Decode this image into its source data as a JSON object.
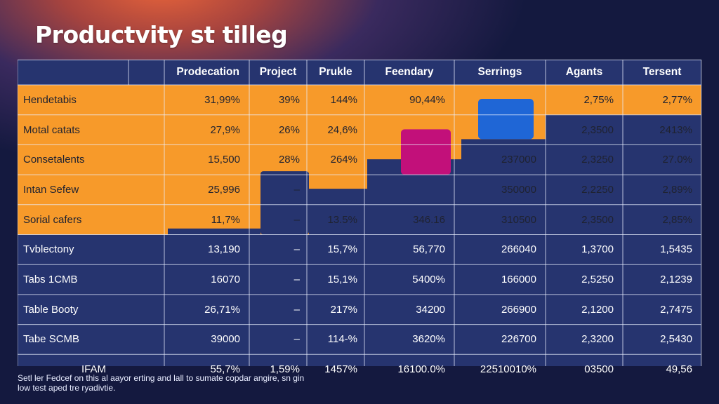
{
  "title": "Productvity st tilleg",
  "footnote": "Setl ler Fedcef on this al aayor erting and lall to sumate copdar angire, sn gin low test aped tre ryadivtie.",
  "colors": {
    "orange": "#f79a2a",
    "navy": "#26346f",
    "magenta": "#c2107a",
    "blue": "#1f66d6",
    "text_dark": "#1f2230"
  },
  "chart_data": {
    "type": "table",
    "title": "Productvity st tilleg",
    "columns": [
      "",
      "",
      "Prodecation",
      "Project",
      "Prukle",
      "Feendary",
      "Serrings",
      "Agants",
      "Tersent"
    ],
    "rows": [
      {
        "label": "Hendetabis",
        "cells": [
          "31,99%",
          "39%",
          "144%",
          "90,44%",
          "",
          "2,75%",
          "2,77%"
        ]
      },
      {
        "label": "Motal catats",
        "cells": [
          "27,9%",
          "26%",
          "24,6%",
          "",
          "",
          "2,3500",
          "2413%"
        ]
      },
      {
        "label": "Consetalents",
        "cells": [
          "15,500",
          "28%",
          "264%",
          "",
          "237000",
          "2,3250",
          "27.0%"
        ]
      },
      {
        "label": "Intan Sefew",
        "cells": [
          "25,996",
          "–",
          "",
          "",
          "350000",
          "2,2250",
          "2,89%"
        ]
      },
      {
        "label": "Sorial cafers",
        "cells": [
          "11,7%",
          "–",
          "13.5%",
          "346.16",
          "310500",
          "2,3500",
          "2,85%"
        ]
      },
      {
        "label": "Tvblectony",
        "cells": [
          "13,190",
          "–",
          "15,7%",
          "56,770",
          "266040",
          "1,3700",
          "1,5435"
        ]
      },
      {
        "label": "Tabs 1CMB",
        "cells": [
          "16070",
          "–",
          "15,1%",
          "5400%",
          "166000",
          "2,5250",
          "2,1239"
        ]
      },
      {
        "label": "Table Booty",
        "cells": [
          "26,71%",
          "–",
          "217%",
          "34200",
          "266900",
          "2,1200",
          "2,7475"
        ]
      },
      {
        "label": "Tabe SCMB",
        "cells": [
          "39000",
          "–",
          "114-%",
          "3620%",
          "226700",
          "2,3200",
          "2,5430"
        ]
      },
      {
        "label": "IFAM",
        "cells": [
          "55,7%",
          "1,59%",
          "1457%",
          "16100.0%",
          "22510010%",
          "03500",
          "49,56"
        ]
      }
    ]
  }
}
